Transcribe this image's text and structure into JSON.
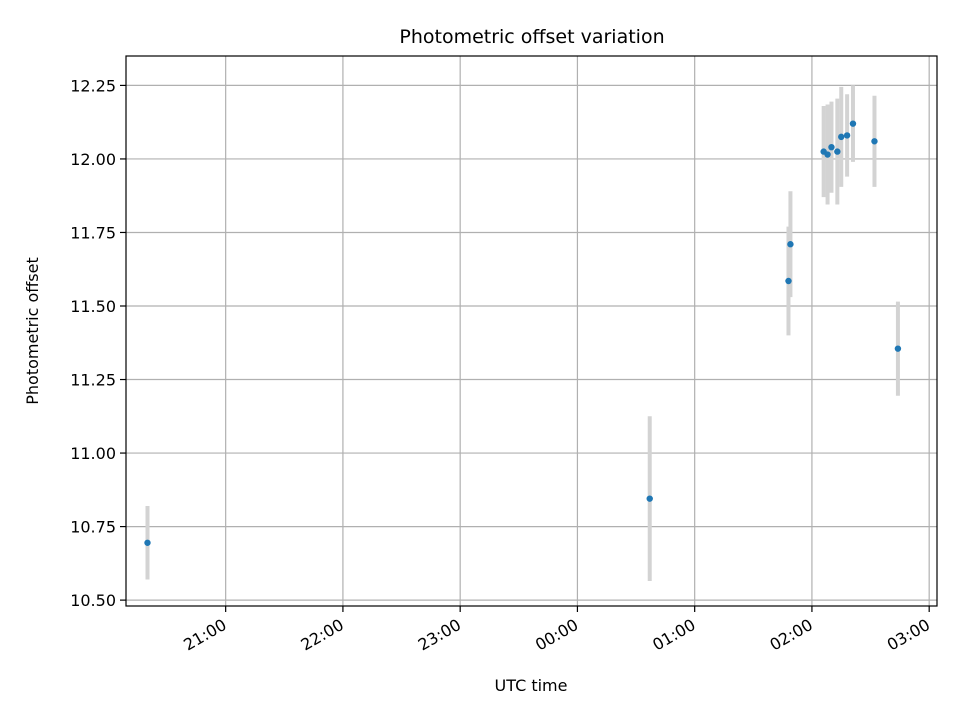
{
  "chart_data": {
    "type": "scatter",
    "title": "Photometric offset variation",
    "xlabel": "UTC time",
    "ylabel": "Photometric offset",
    "x_ticks": [
      "21:00",
      "22:00",
      "23:00",
      "00:00",
      "01:00",
      "02:00",
      "03:00"
    ],
    "y_ticks": [
      "10.50",
      "10.75",
      "11.00",
      "11.25",
      "11.50",
      "11.75",
      "12.00",
      "12.25"
    ],
    "xlim": [
      "20:09",
      "03:04"
    ],
    "ylim": [
      10.48,
      12.35
    ],
    "grid": true,
    "legend": "none",
    "colors": {
      "points": "#1f77b4",
      "errorbars": "#d3d3d3",
      "grid": "#b0b0b0"
    },
    "series": [
      {
        "points": [
          {
            "x": "20:20",
            "y": 10.695,
            "yerr": 0.125
          },
          {
            "x": "00:37",
            "y": 10.845,
            "yerr": 0.28
          },
          {
            "x": "01:48",
            "y": 11.585,
            "yerr": 0.185
          },
          {
            "x": "01:49",
            "y": 11.71,
            "yerr": 0.18
          },
          {
            "x": "02:06",
            "y": 12.025,
            "yerr": 0.155
          },
          {
            "x": "02:08",
            "y": 12.015,
            "yerr": 0.17
          },
          {
            "x": "02:10",
            "y": 12.04,
            "yerr": 0.155
          },
          {
            "x": "02:13",
            "y": 12.025,
            "yerr": 0.18
          },
          {
            "x": "02:15",
            "y": 12.075,
            "yerr": 0.17
          },
          {
            "x": "02:18",
            "y": 12.08,
            "yerr": 0.14
          },
          {
            "x": "02:21",
            "y": 12.12,
            "yerr": 0.13
          },
          {
            "x": "02:32",
            "y": 12.06,
            "yerr": 0.155
          },
          {
            "x": "02:44",
            "y": 11.355,
            "yerr": 0.16
          }
        ]
      }
    ]
  }
}
